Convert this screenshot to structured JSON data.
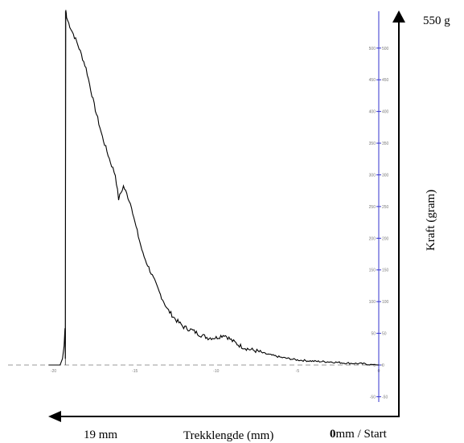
{
  "chart_data": {
    "type": "line",
    "xlabel": "Trekklengde (mm)",
    "ylabel": "Kraft (gram)",
    "xlim": [
      -20.3,
      0.3
    ],
    "ylim": [
      -50,
      560
    ],
    "x_ticks": [
      "-20",
      "-15",
      "-10",
      "-5",
      "0"
    ],
    "y_ticks": [
      "-50",
      "0",
      "50",
      "100",
      "150",
      "200",
      "250",
      "300",
      "350",
      "400",
      "450",
      "500"
    ],
    "axis_color": "#3333cc",
    "line_color": "#000000",
    "zero_line_color": "#999999",
    "annotations": {
      "top": "550 g",
      "left": "19 mm",
      "right_bold": "0",
      "right_rest": "mm  / Start"
    },
    "series": [
      {
        "x": [
          -20.3,
          -19.6,
          -19.45,
          -19.35,
          -19.3,
          -19.28,
          -19.25,
          -19.22,
          -19.2,
          -19.0,
          -18.5,
          -18.0,
          -17.5,
          -17.0,
          -16.5,
          -16.2,
          -16.0,
          -15.7,
          -15.5,
          -15.2,
          -15.0,
          -14.5,
          -14.0,
          -13.5,
          -13.0,
          -12.5,
          -12.0,
          -11.5,
          -11.0,
          -10.5,
          -10.0,
          -9.5,
          -9.0,
          -8.5,
          -8.0,
          -7.5,
          -7.0,
          -6.5,
          -6.0,
          -5.0,
          -4.0,
          -3.0,
          -2.0,
          -1.0,
          0.0
        ],
        "y": [
          0,
          0,
          10,
          30,
          58,
          10,
          560,
          555,
          548,
          535,
          505,
          468,
          410,
          360,
          320,
          300,
          262,
          282,
          270,
          250,
          225,
          175,
          145,
          115,
          88,
          72,
          60,
          55,
          48,
          43,
          43,
          48,
          38,
          30,
          25,
          22,
          18,
          15,
          12,
          8,
          6,
          5,
          3,
          2,
          0
        ]
      }
    ]
  }
}
